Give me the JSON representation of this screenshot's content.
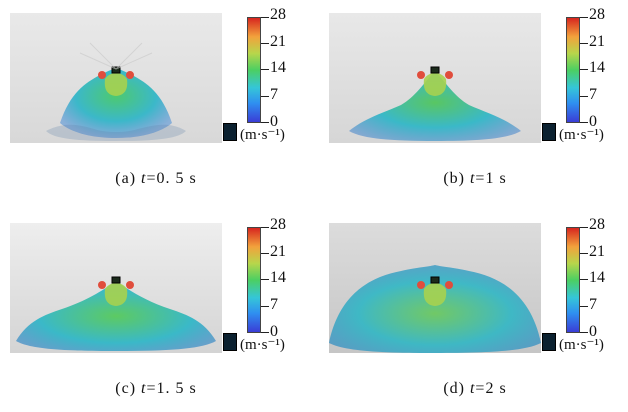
{
  "colorbar": {
    "ticks": [
      "28",
      "21",
      "14",
      "7",
      "0"
    ],
    "unit": "(m·s⁻¹)"
  },
  "panels": [
    {
      "prefix": "(a)",
      "var": "t",
      "eq": "=0. 5 s"
    },
    {
      "prefix": "(b)",
      "var": "t",
      "eq": "=1 s"
    },
    {
      "prefix": "(c)",
      "var": "t",
      "eq": "=1. 5 s"
    },
    {
      "prefix": "(d)",
      "var": "t",
      "eq": "=2 s"
    }
  ]
}
